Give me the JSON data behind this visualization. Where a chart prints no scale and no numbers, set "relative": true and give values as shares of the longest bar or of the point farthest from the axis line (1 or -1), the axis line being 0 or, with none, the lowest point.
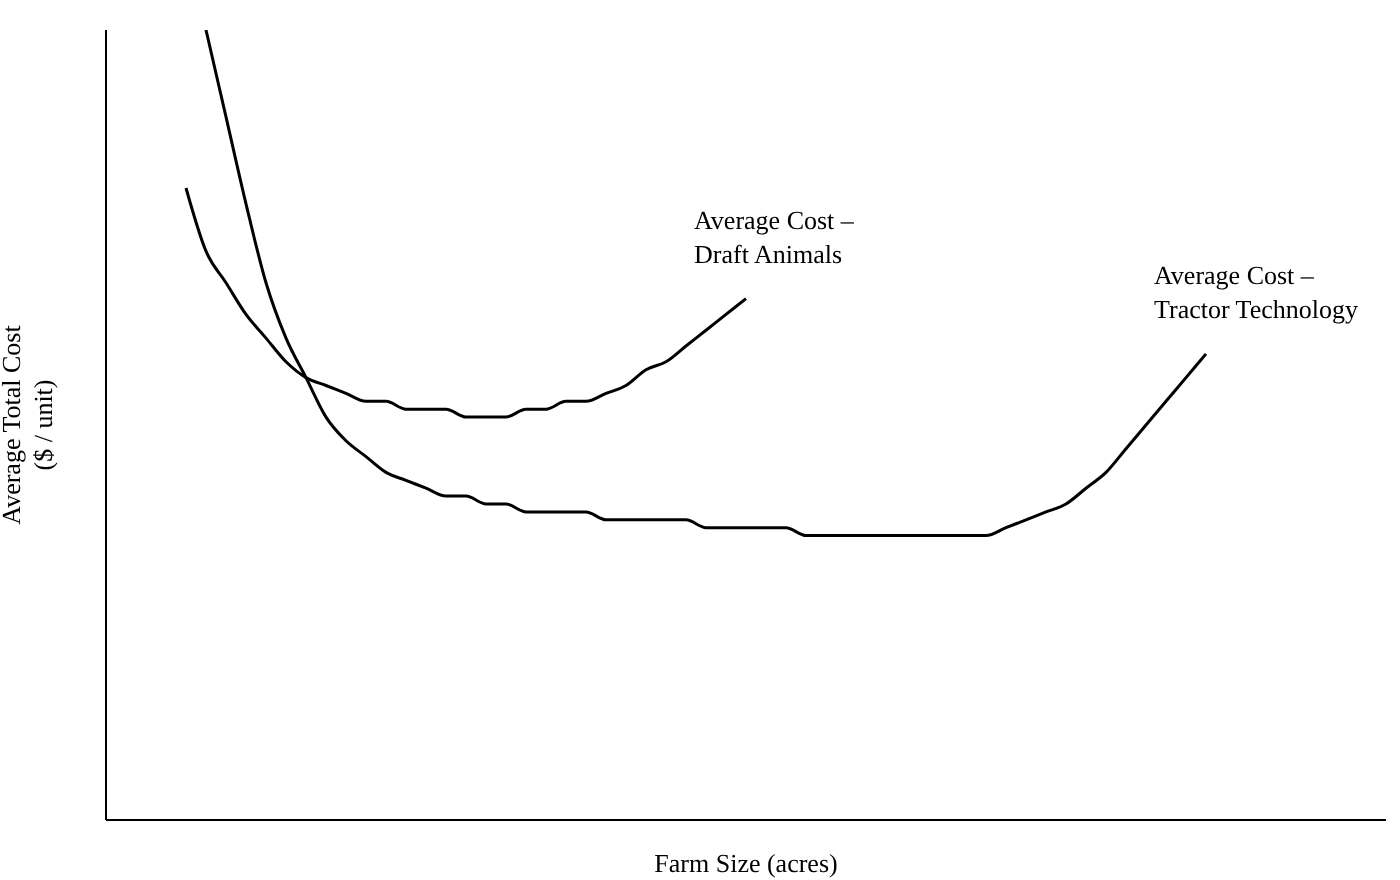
{
  "chart_data": {
    "type": "line",
    "relative": true,
    "xlabel": "Farm Size (acres)",
    "ylabel": "Average Total Cost ($ / unit)",
    "marker": "none",
    "categories": [
      null,
      null,
      null,
      null,
      null,
      null,
      null,
      null,
      null,
      null,
      null,
      null,
      null,
      null,
      null,
      null,
      null,
      null,
      null,
      null,
      null,
      null,
      null,
      null,
      null,
      null,
      null,
      null,
      null,
      null,
      null,
      null,
      null,
      null,
      null,
      null,
      null,
      null,
      null,
      null,
      null,
      null,
      null,
      null,
      null,
      null,
      null,
      null,
      null,
      null,
      null,
      null,
      null,
      null,
      null,
      null,
      null,
      null,
      null,
      null,
      null,
      null,
      null,
      null,
      null
    ],
    "series": [
      {
        "name": "Average Cost – Draft Animals",
        "color": "#000000",
        "values": [
          null,
          null,
          null,
          null,
          0.8,
          0.72,
          0.68,
          0.64,
          0.61,
          0.58,
          0.56,
          0.55,
          0.54,
          0.53,
          0.53,
          0.52,
          0.52,
          0.52,
          0.51,
          0.51,
          0.51,
          0.52,
          0.52,
          0.53,
          0.53,
          0.54,
          0.55,
          0.57,
          0.58,
          0.6,
          0.62,
          0.64,
          0.66,
          null,
          null,
          null,
          null,
          null,
          null,
          null,
          null,
          null,
          null,
          null,
          null,
          null,
          null,
          null,
          null,
          null,
          null,
          null,
          null,
          null,
          null,
          null,
          null,
          null,
          null,
          null,
          null,
          null,
          null,
          null,
          null
        ]
      },
      {
        "name": "Average Cost – Tractor Technology",
        "color": "#000000",
        "values": [
          null,
          null,
          null,
          null,
          null,
          1.0,
          0.89,
          0.78,
          0.68,
          0.61,
          0.56,
          0.51,
          0.48,
          0.46,
          0.44,
          0.43,
          0.42,
          0.41,
          0.41,
          0.4,
          0.4,
          0.39,
          0.39,
          0.39,
          0.39,
          0.38,
          0.38,
          0.38,
          0.38,
          0.38,
          0.37,
          0.37,
          0.37,
          0.37,
          0.37,
          0.36,
          0.36,
          0.36,
          0.36,
          0.36,
          0.36,
          0.36,
          0.36,
          0.36,
          0.36,
          0.37,
          0.38,
          0.39,
          0.4,
          0.42,
          0.44,
          0.47,
          0.5,
          0.53,
          0.56,
          0.59,
          null,
          null,
          null,
          null,
          null,
          null,
          null,
          null,
          null
        ]
      }
    ]
  }
}
